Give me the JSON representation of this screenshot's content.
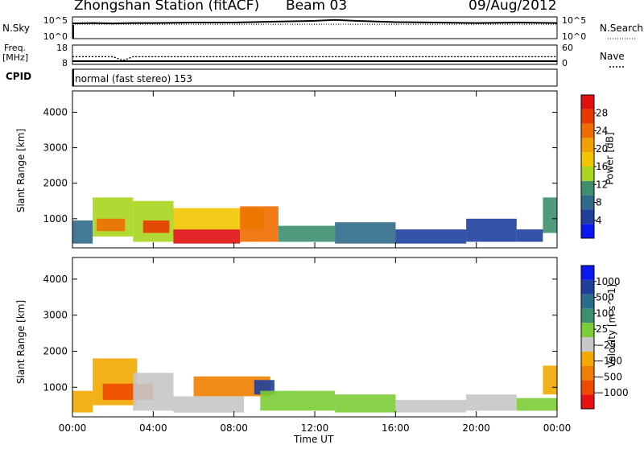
{
  "header": {
    "station": "Zhongshan Station (fitACF)",
    "beam": "Beam 03",
    "date": "09/Aug/2012"
  },
  "left_labels": {
    "nsky": "N.Sky",
    "freq_line1": "Freq.",
    "freq_line2": "[MHz]",
    "cpid": "CPID"
  },
  "right_labels": {
    "nsearch": "N.Search",
    "nave": "Nave"
  },
  "cpid_text": "normal (fast stereo) 153",
  "colors": {
    "power": [
      "#0a18f0",
      "#1e3f9c",
      "#2f6a8a",
      "#3f8f6e",
      "#a8d51e",
      "#f1c400",
      "#f2a000",
      "#ef6d00",
      "#e83a00",
      "#e01010"
    ],
    "velocity": [
      "#e81010",
      "#ef4a00",
      "#f07f00",
      "#f2a800",
      "#c7c7c7",
      "#7ccc35",
      "#3f8f6e",
      "#2b6d8a",
      "#1f3f9c",
      "#0a18f0"
    ]
  },
  "chart_data": [
    {
      "type": "line",
      "title": "N.Sky / N.Search",
      "ylabel": "N.Sky",
      "y2label": "N.Search",
      "yticks": [
        "10^5",
        "10^0"
      ],
      "y2ticks": [
        "10^5",
        "10^0"
      ],
      "series": [
        {
          "name": "N.Sky",
          "x": [
            0,
            1,
            2,
            3,
            4,
            6,
            8,
            10,
            12,
            13,
            14,
            16,
            18,
            20,
            22,
            24
          ],
          "y": [
            3.5,
            3.6,
            3.5,
            3.6,
            3.6,
            3.7,
            3.7,
            3.9,
            4.1,
            4.3,
            4.1,
            3.8,
            3.7,
            3.6,
            3.7,
            3.6
          ]
        }
      ]
    },
    {
      "type": "line",
      "title": "Freq. / Nave",
      "ylabel": "Freq. [MHz]",
      "y2label": "Nave",
      "yticks": [
        18,
        8
      ],
      "y2ticks": [
        60,
        0
      ],
      "series": [
        {
          "name": "Freq.",
          "x": [
            0,
            2,
            2.5,
            3,
            6,
            12,
            18,
            24
          ],
          "y": [
            12,
            12,
            10,
            12,
            12,
            12,
            12,
            12
          ]
        }
      ]
    },
    {
      "type": "heatmap",
      "title": "Power",
      "xlabel": "",
      "ylabel": "Slant Range [km]",
      "zlabel": "Power [dB]",
      "xlim": [
        0,
        24
      ],
      "ylim": [
        180,
        4600
      ],
      "yticks": [
        1000,
        2000,
        3000,
        4000
      ],
      "zticks": [
        4,
        8,
        12,
        16,
        20,
        24,
        28
      ],
      "regions": [
        {
          "t": [
            0.0,
            1.0
          ],
          "r": [
            300,
            950
          ],
          "z": 9
        },
        {
          "t": [
            1.0,
            3.0
          ],
          "r": [
            500,
            1600
          ],
          "z": 13
        },
        {
          "t": [
            1.2,
            2.6
          ],
          "r": [
            650,
            1000
          ],
          "z": 24
        },
        {
          "t": [
            3.0,
            5.0
          ],
          "r": [
            350,
            1500
          ],
          "z": 14
        },
        {
          "t": [
            3.5,
            4.8
          ],
          "r": [
            600,
            950
          ],
          "z": 26
        },
        {
          "t": [
            5.0,
            8.3
          ],
          "r": [
            300,
            700
          ],
          "z": 29
        },
        {
          "t": [
            5.0,
            9.5
          ],
          "r": [
            700,
            1300
          ],
          "z": 19
        },
        {
          "t": [
            8.3,
            10.2
          ],
          "r": [
            350,
            1350
          ],
          "z": 23
        },
        {
          "t": [
            10.2,
            13.0
          ],
          "r": [
            350,
            800
          ],
          "z": 12
        },
        {
          "t": [
            13.0,
            16.0
          ],
          "r": [
            300,
            900
          ],
          "z": 7
        },
        {
          "t": [
            16.0,
            19.5
          ],
          "r": [
            300,
            700
          ],
          "z": 5
        },
        {
          "t": [
            19.5,
            22.0
          ],
          "r": [
            350,
            1000
          ],
          "z": 6
        },
        {
          "t": [
            22.0,
            23.3
          ],
          "r": [
            350,
            700
          ],
          "z": 6
        },
        {
          "t": [
            23.3,
            24.0
          ],
          "r": [
            600,
            1600
          ],
          "z": 12
        }
      ]
    },
    {
      "type": "heatmap",
      "title": "Velocity",
      "xlabel": "Time UT",
      "ylabel": "Slant Range [km]",
      "zlabel": "Velocity [m s^-1]",
      "xlim": [
        0,
        24
      ],
      "ylim": [
        180,
        4600
      ],
      "yticks": [
        1000,
        2000,
        3000,
        4000
      ],
      "xticks": [
        "00:00",
        "04:00",
        "08:00",
        "12:00",
        "16:00",
        "20:00",
        "00:00"
      ],
      "zticks": [
        -1000,
        -500,
        -100,
        -25,
        25,
        100,
        500,
        1000
      ],
      "regions": [
        {
          "t": [
            0.0,
            1.0
          ],
          "r": [
            300,
            900
          ],
          "z": -300
        },
        {
          "t": [
            1.0,
            3.2
          ],
          "r": [
            500,
            1800
          ],
          "z": -300
        },
        {
          "t": [
            1.5,
            4.0
          ],
          "r": [
            650,
            1100
          ],
          "z": -800
        },
        {
          "t": [
            3.0,
            5.0
          ],
          "r": [
            350,
            1400
          ],
          "z": -200
        },
        {
          "t": [
            5.0,
            8.5
          ],
          "r": [
            300,
            750
          ],
          "z": -150
        },
        {
          "t": [
            6.0,
            9.8
          ],
          "r": [
            750,
            1300
          ],
          "z": -600
        },
        {
          "t": [
            9.0,
            10.0
          ],
          "r": [
            800,
            1200
          ],
          "z": 800
        },
        {
          "t": [
            9.3,
            13.0
          ],
          "r": [
            350,
            900
          ],
          "z": 200
        },
        {
          "t": [
            13.0,
            16.0
          ],
          "r": [
            300,
            800
          ],
          "z": 150
        },
        {
          "t": [
            16.0,
            19.5
          ],
          "r": [
            300,
            650
          ],
          "z": -200
        },
        {
          "t": [
            19.5,
            22.0
          ],
          "r": [
            350,
            800
          ],
          "z": -150
        },
        {
          "t": [
            22.0,
            24.0
          ],
          "r": [
            350,
            700
          ],
          "z": 60
        },
        {
          "t": [
            23.3,
            24.0
          ],
          "r": [
            800,
            1600
          ],
          "z": -300
        }
      ]
    }
  ]
}
